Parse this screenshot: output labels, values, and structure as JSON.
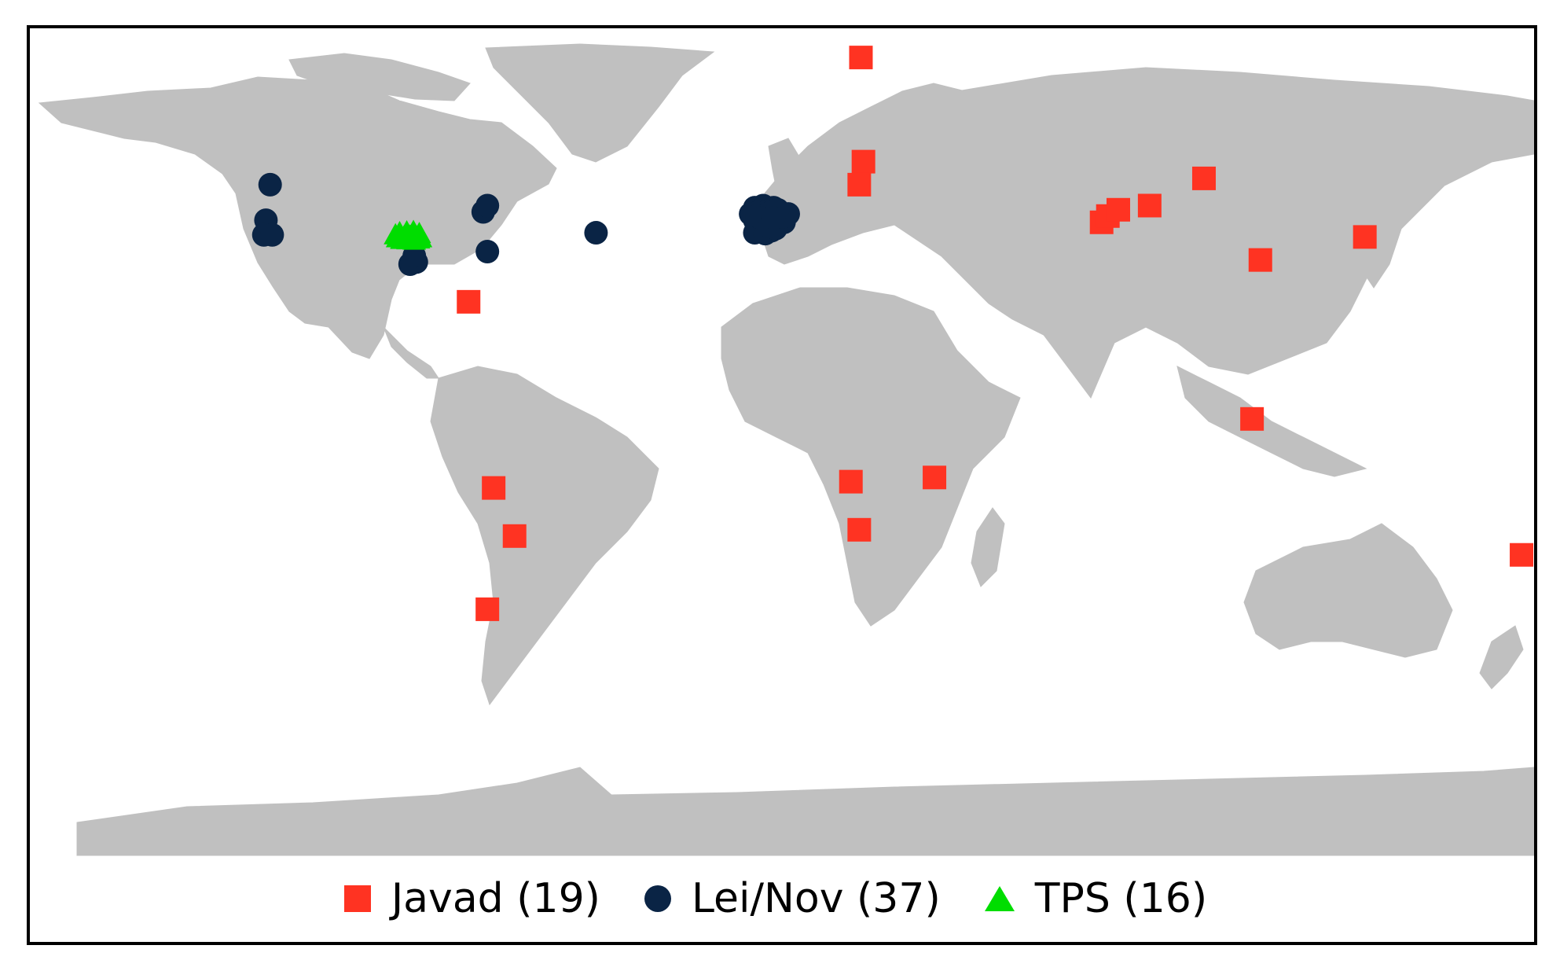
{
  "colors": {
    "land": "#c0c0c0",
    "ocean": "#ffffff",
    "frame": "#000000",
    "javad": "#ff3322",
    "leinov": "#0a2445",
    "tps": "#00dd00"
  },
  "legend": {
    "javad": {
      "label": "Javad (19)",
      "symbol": "red-square"
    },
    "leinov": {
      "label": "Lei/Nov (37)",
      "symbol": "navy-circle"
    },
    "tps": {
      "label": "TPS (16)",
      "symbol": "green-triangle"
    }
  },
  "stations": {
    "javad": [
      {
        "lon": 18.9,
        "lat": 78.9
      },
      {
        "lon": 19.5,
        "lat": 54.0
      },
      {
        "lon": 18.5,
        "lat": 48.5
      },
      {
        "lon": 76.5,
        "lat": 39.5
      },
      {
        "lon": 78.0,
        "lat": 41.0
      },
      {
        "lon": 80.5,
        "lat": 42.5
      },
      {
        "lon": 88.0,
        "lat": 43.5
      },
      {
        "lon": 101.0,
        "lat": 50.0
      },
      {
        "lon": 139.5,
        "lat": 36.0
      },
      {
        "lon": 114.5,
        "lat": 30.5
      },
      {
        "lon": 112.5,
        "lat": -7.5
      },
      {
        "lon": 177.0,
        "lat": -40.0
      },
      {
        "lon": -75.0,
        "lat": 20.5
      },
      {
        "lon": -69.0,
        "lat": -24.0
      },
      {
        "lon": -64.0,
        "lat": -35.5
      },
      {
        "lon": -70.5,
        "lat": -53.0
      },
      {
        "lon": 16.5,
        "lat": -22.5
      },
      {
        "lon": 18.5,
        "lat": -34.0
      },
      {
        "lon": 36.5,
        "lat": -21.5
      }
    ],
    "leinov": [
      {
        "lon": -122.5,
        "lat": 48.5
      },
      {
        "lon": -123.5,
        "lat": 40.0
      },
      {
        "lon": -124.0,
        "lat": 36.5
      },
      {
        "lon": -122.0,
        "lat": 36.5
      },
      {
        "lon": -89.0,
        "lat": 29.5
      },
      {
        "lon": -87.5,
        "lat": 30.0
      },
      {
        "lon": -88.0,
        "lat": 31.5
      },
      {
        "lon": -71.5,
        "lat": 42.0
      },
      {
        "lon": -70.5,
        "lat": 43.5
      },
      {
        "lon": -70.5,
        "lat": 32.5
      },
      {
        "lon": -44.5,
        "lat": 37.0
      },
      {
        "lon": -6.5,
        "lat": 43.0
      },
      {
        "lon": -4.5,
        "lat": 43.5
      },
      {
        "lon": -2.0,
        "lat": 43.0
      },
      {
        "lon": -1.0,
        "lat": 41.5
      },
      {
        "lon": -3.5,
        "lat": 41.0
      },
      {
        "lon": -6.5,
        "lat": 40.0
      },
      {
        "lon": -5.0,
        "lat": 38.5
      },
      {
        "lon": -2.5,
        "lat": 37.5
      },
      {
        "lon": -6.5,
        "lat": 37.0
      },
      {
        "lon": -4.0,
        "lat": 36.8
      },
      {
        "lon": 0.5,
        "lat": 39.5
      },
      {
        "lon": 1.5,
        "lat": 41.5
      },
      {
        "lon": -3.0,
        "lat": 40.0
      },
      {
        "lon": -1.5,
        "lat": 38.0
      },
      {
        "lon": -7.5,
        "lat": 41.5
      },
      {
        "lon": -5.5,
        "lat": 42.0
      },
      {
        "lon": -3.8,
        "lat": 42.0
      },
      {
        "lon": -1.8,
        "lat": 39.8
      },
      {
        "lon": -4.2,
        "lat": 39.0
      },
      {
        "lon": -6.0,
        "lat": 41.0
      },
      {
        "lon": 0.0,
        "lat": 40.8
      },
      {
        "lon": -2.8,
        "lat": 41.8
      },
      {
        "lon": -5.0,
        "lat": 40.5
      },
      {
        "lon": -3.0,
        "lat": 38.5
      },
      {
        "lon": -1.0,
        "lat": 42.5
      },
      {
        "lon": -2.0,
        "lat": 40.5
      }
    ],
    "tps": [
      {
        "lon": -92.5,
        "lat": 36.5
      },
      {
        "lon": -91.5,
        "lat": 37.0
      },
      {
        "lon": -90.5,
        "lat": 36.0
      },
      {
        "lon": -89.8,
        "lat": 37.2
      },
      {
        "lon": -89.0,
        "lat": 36.2
      },
      {
        "lon": -88.2,
        "lat": 37.3
      },
      {
        "lon": -87.5,
        "lat": 36.1
      },
      {
        "lon": -86.8,
        "lat": 36.8
      },
      {
        "lon": -92.0,
        "lat": 35.8
      },
      {
        "lon": -90.0,
        "lat": 35.6
      },
      {
        "lon": -88.5,
        "lat": 35.7
      },
      {
        "lon": -87.0,
        "lat": 35.5
      },
      {
        "lon": -91.0,
        "lat": 35.4
      },
      {
        "lon": -89.5,
        "lat": 35.3
      },
      {
        "lon": -88.0,
        "lat": 35.2
      },
      {
        "lon": -86.5,
        "lat": 35.8
      }
    ]
  }
}
